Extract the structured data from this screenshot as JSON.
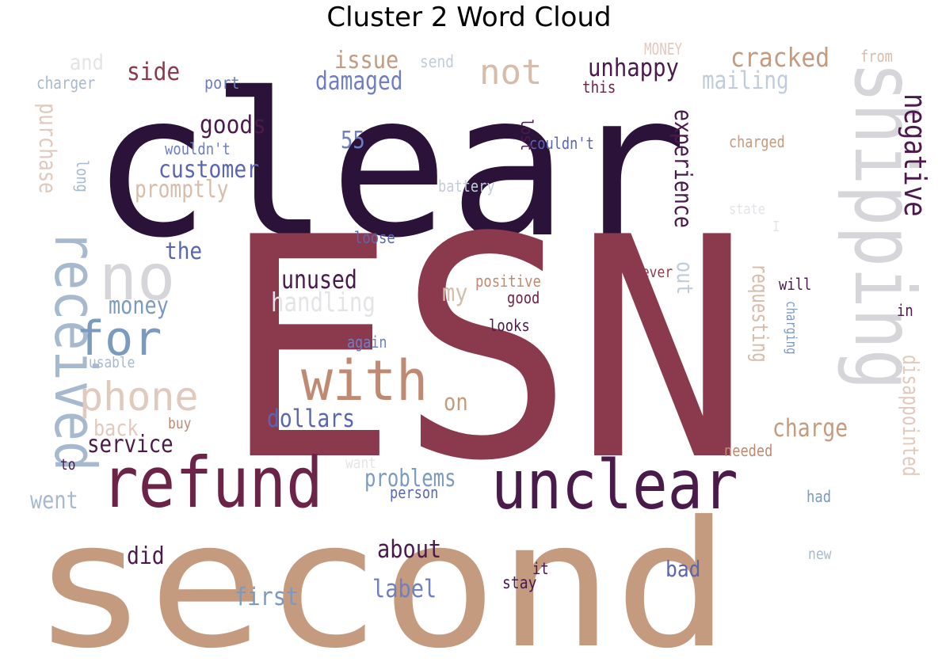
{
  "chart_data": {
    "type": "wordcloud",
    "title": "Cluster 2 Word Cloud",
    "words": [
      {
        "text": "clear",
        "color": "#2b1238"
      },
      {
        "text": "ESN",
        "color": "#8b3a4e"
      },
      {
        "text": "second",
        "color": "#c49b7e"
      },
      {
        "text": "refund",
        "color": "#6b2448"
      },
      {
        "text": "unclear",
        "color": "#4a1a4a"
      },
      {
        "text": "shipping",
        "color": "#d6d6da"
      },
      {
        "text": "with",
        "color": "#c08a72"
      },
      {
        "text": "received",
        "color": "#a7b9cf"
      },
      {
        "text": "no",
        "color": "#d6d6da"
      },
      {
        "text": "for",
        "color": "#7b9ac0"
      },
      {
        "text": "phone",
        "color": "#e0c9bd"
      },
      {
        "text": "not",
        "color": "#d8bcaa"
      },
      {
        "text": "negative",
        "color": "#4a1a4a"
      },
      {
        "text": "experience",
        "color": "#4a1a4a"
      },
      {
        "text": "cracked",
        "color": "#c49b7e"
      },
      {
        "text": "unhappy",
        "color": "#4a1a4a"
      },
      {
        "text": "damaged",
        "color": "#6f7fc0"
      },
      {
        "text": "issue",
        "color": "#c49b7e"
      },
      {
        "text": "side",
        "color": "#8b3a4e"
      },
      {
        "text": "mailing",
        "color": "#c1ccdb"
      },
      {
        "text": "goods",
        "color": "#4a1a4a"
      },
      {
        "text": "customer",
        "color": "#5a66b0"
      },
      {
        "text": "promptly",
        "color": "#d8bcaa"
      },
      {
        "text": "55",
        "color": "#6f7fc0"
      },
      {
        "text": "purchase",
        "color": "#e0c9bd"
      },
      {
        "text": "handling",
        "color": "#e4e4e8"
      },
      {
        "text": "unused",
        "color": "#4a1a4a"
      },
      {
        "text": "money",
        "color": "#7b9ac0"
      },
      {
        "text": "the",
        "color": "#5a66b0"
      },
      {
        "text": "my",
        "color": "#d8bcaa"
      },
      {
        "text": "requesting",
        "color": "#d8bcaa"
      },
      {
        "text": "disappointed",
        "color": "#e0c9bd"
      },
      {
        "text": "charge",
        "color": "#c49b7e"
      },
      {
        "text": "dollars",
        "color": "#5a66b0"
      },
      {
        "text": "service",
        "color": "#4a1a4a"
      },
      {
        "text": "problems",
        "color": "#7b9ac0"
      },
      {
        "text": "went",
        "color": "#a7b9cf"
      },
      {
        "text": "about",
        "color": "#4a1a4a"
      },
      {
        "text": "did",
        "color": "#4a1a4a"
      },
      {
        "text": "label",
        "color": "#6f7fc0"
      },
      {
        "text": "first",
        "color": "#7b9ac0"
      },
      {
        "text": "bad",
        "color": "#5a66b0"
      },
      {
        "text": "out",
        "color": "#c1ccdb"
      },
      {
        "text": "on",
        "color": "#c49b7e"
      },
      {
        "text": "back",
        "color": "#e0c9bd"
      },
      {
        "text": "and",
        "color": "#e4e4e8"
      },
      {
        "text": "charger",
        "color": "#a7b9cf"
      },
      {
        "text": "port",
        "color": "#6f7fc0"
      },
      {
        "text": "send",
        "color": "#c1ccdb"
      },
      {
        "text": "MONEY",
        "color": "#e0c9bd"
      },
      {
        "text": "from",
        "color": "#d8bcaa"
      },
      {
        "text": "this",
        "color": "#6b2448"
      },
      {
        "text": "wouldn't",
        "color": "#6f7fc0"
      },
      {
        "text": "couldn't",
        "color": "#5a66b0"
      },
      {
        "text": "charged",
        "color": "#c49b7e"
      },
      {
        "text": "lost",
        "color": "#4a1a4a"
      },
      {
        "text": "long",
        "color": "#a7b9cf"
      },
      {
        "text": "battery",
        "color": "#c1ccdb"
      },
      {
        "text": "state",
        "color": "#e4e4e8"
      },
      {
        "text": "I",
        "color": "#e4e4e8"
      },
      {
        "text": "loose",
        "color": "#5a66b0"
      },
      {
        "text": "positive",
        "color": "#c08a72"
      },
      {
        "text": "good",
        "color": "#6b2448"
      },
      {
        "text": "never",
        "color": "#8b3a4e"
      },
      {
        "text": "will",
        "color": "#4a1a4a"
      },
      {
        "text": "in",
        "color": "#4a1a4a"
      },
      {
        "text": "looks",
        "color": "#4a1a4a"
      },
      {
        "text": "again",
        "color": "#6f7fc0"
      },
      {
        "text": "usable",
        "color": "#a7b9cf"
      },
      {
        "text": "charging",
        "color": "#7b9ac0"
      },
      {
        "text": "buy",
        "color": "#c08a72"
      },
      {
        "text": "to",
        "color": "#4a1a4a"
      },
      {
        "text": "want",
        "color": "#e4e4e8"
      },
      {
        "text": "needed",
        "color": "#c08a72"
      },
      {
        "text": "person",
        "color": "#5a66b0"
      },
      {
        "text": "had",
        "color": "#7b9ac0"
      },
      {
        "text": "new",
        "color": "#a7b9cf"
      },
      {
        "text": "it",
        "color": "#4a1a4a"
      },
      {
        "text": "stay",
        "color": "#4a1a4a"
      }
    ]
  }
}
